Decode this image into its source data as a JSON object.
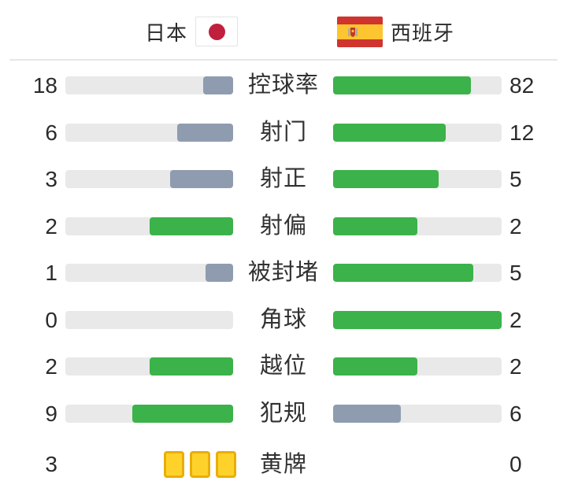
{
  "header": {
    "home_team": "日本",
    "away_team": "西班牙"
  },
  "colors": {
    "win_green": "#3cb24a",
    "lose_gray": "#8f9cb0",
    "bar_track": "#e9e9e9",
    "text": "#2b2b2b",
    "divider": "#e8e6e6",
    "yellow_card_fill": "#ffd22b",
    "yellow_card_border": "#e9ae07",
    "japan_flag_red": "#c11f3e",
    "spain_flag_red": "#d0342f",
    "spain_flag_yellow": "#fdc52f"
  },
  "chart_data": {
    "type": "bar",
    "orientation": "horizontal_paired_comparison",
    "note": "fill length = value / (home+away); green = side with value >= opponent, blue-gray = lower side; bars grow outward from center labels",
    "series": [
      {
        "name": "日本",
        "values": [
          18,
          6,
          3,
          2,
          1,
          0,
          2,
          9,
          3
        ]
      },
      {
        "name": "西班牙",
        "values": [
          82,
          12,
          5,
          2,
          5,
          2,
          2,
          6,
          0
        ]
      }
    ],
    "rows": [
      {
        "label": "控球率",
        "home": 18,
        "away": 82
      },
      {
        "label": "射门",
        "home": 6,
        "away": 12
      },
      {
        "label": "射正",
        "home": 3,
        "away": 5
      },
      {
        "label": "射偏",
        "home": 2,
        "away": 2
      },
      {
        "label": "被封堵",
        "home": 1,
        "away": 5
      },
      {
        "label": "角球",
        "home": 0,
        "away": 2
      },
      {
        "label": "越位",
        "home": 2,
        "away": 2
      },
      {
        "label": "犯规",
        "home": 9,
        "away": 6
      },
      {
        "label": "黄牌",
        "home": 3,
        "away": 0,
        "type": "yellow_cards"
      }
    ]
  }
}
